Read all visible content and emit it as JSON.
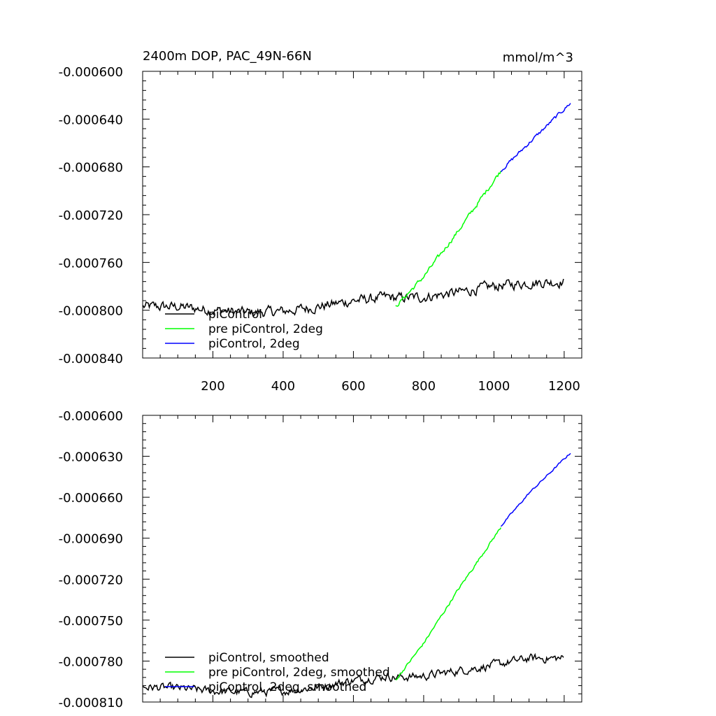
{
  "chart_data": [
    {
      "type": "line",
      "title": "2400m DOP, PAC_49N-66N",
      "units": "mmol/m^3",
      "xlim": [
        0,
        1250
      ],
      "ylim": [
        -0.00084,
        -0.0006
      ],
      "xticks": [
        200,
        400,
        600,
        800,
        1000,
        1200
      ],
      "xtick_labels": [
        "200",
        "400",
        "600",
        "800",
        "1000",
        "1200"
      ],
      "yticks": [
        -0.0006,
        -0.00064,
        -0.00068,
        -0.00072,
        -0.00076,
        -0.0008,
        -0.00084
      ],
      "ytick_labels": [
        "-0.000600",
        "-0.000640",
        "-0.000680",
        "-0.000720",
        "-0.000760",
        "-0.000800",
        "-0.000840"
      ],
      "legend_placement": "bottom-left",
      "series": [
        {
          "name": "piControl",
          "color": "#000000",
          "x": [
            1,
            100,
            200,
            300,
            400,
            500,
            600,
            700,
            720,
            800,
            900,
            1000,
            1100,
            1200
          ],
          "y": [
            -0.000797,
            -0.000797,
            -0.0008,
            -0.000802,
            -0.000801,
            -0.000797,
            -0.000792,
            -0.000789,
            -0.00079,
            -0.000789,
            -0.000785,
            -0.00078,
            -0.000777,
            -0.000776
          ],
          "noise": 3.5e-06
        },
        {
          "name": "pre piControl, 2deg",
          "color": "#00ff00",
          "x": [
            720,
            800,
            900,
            1020
          ],
          "y": [
            -0.000797,
            -0.000772,
            -0.000733,
            -0.000683
          ],
          "noise": 1.5e-06
        },
        {
          "name": "piControl, 2deg",
          "color": "#0000ff",
          "x": [
            1020,
            1100,
            1220
          ],
          "y": [
            -0.000683,
            -0.00066,
            -0.000626
          ],
          "noise": 1.2e-06
        }
      ]
    },
    {
      "type": "line",
      "xlim": [
        0,
        1250
      ],
      "ylim": [
        -0.00081,
        -0.0006
      ],
      "xticks": [
        200,
        400,
        600,
        800,
        1000,
        1200
      ],
      "yticks": [
        -0.0006,
        -0.00063,
        -0.00066,
        -0.00069,
        -0.00072,
        -0.00075,
        -0.00078,
        -0.00081
      ],
      "ytick_labels": [
        "-0.000600",
        "-0.000630",
        "-0.000660",
        "-0.000690",
        "-0.000720",
        "-0.000750",
        "-0.000780",
        "-0.000810"
      ],
      "legend_placement": "bottom-left",
      "series": [
        {
          "name": "piControl, smoothed",
          "color": "#000000",
          "x": [
            1,
            100,
            200,
            300,
            400,
            500,
            600,
            700,
            720,
            800,
            900,
            1000,
            1100,
            1200
          ],
          "y": [
            -0.000799,
            -0.0008,
            -0.000802,
            -0.000803,
            -0.000802,
            -0.000799,
            -0.000794,
            -0.000791,
            -0.000792,
            -0.000791,
            -0.000787,
            -0.000783,
            -0.000778,
            -0.000778
          ],
          "noise": 2.5e-06
        },
        {
          "name": "pre piControl, 2deg, smoothed",
          "color": "#00ff00",
          "x": [
            720,
            800,
            900,
            1020
          ],
          "y": [
            -0.000794,
            -0.000767,
            -0.000727,
            -0.000682
          ],
          "noise": 8e-07
        },
        {
          "name": "piControl, 2deg, smoothed",
          "color": "#0000ff",
          "x": [
            1020,
            1100,
            1220
          ],
          "y": [
            -0.000681,
            -0.000657,
            -0.000627
          ],
          "noise": 6e-07
        }
      ]
    }
  ]
}
